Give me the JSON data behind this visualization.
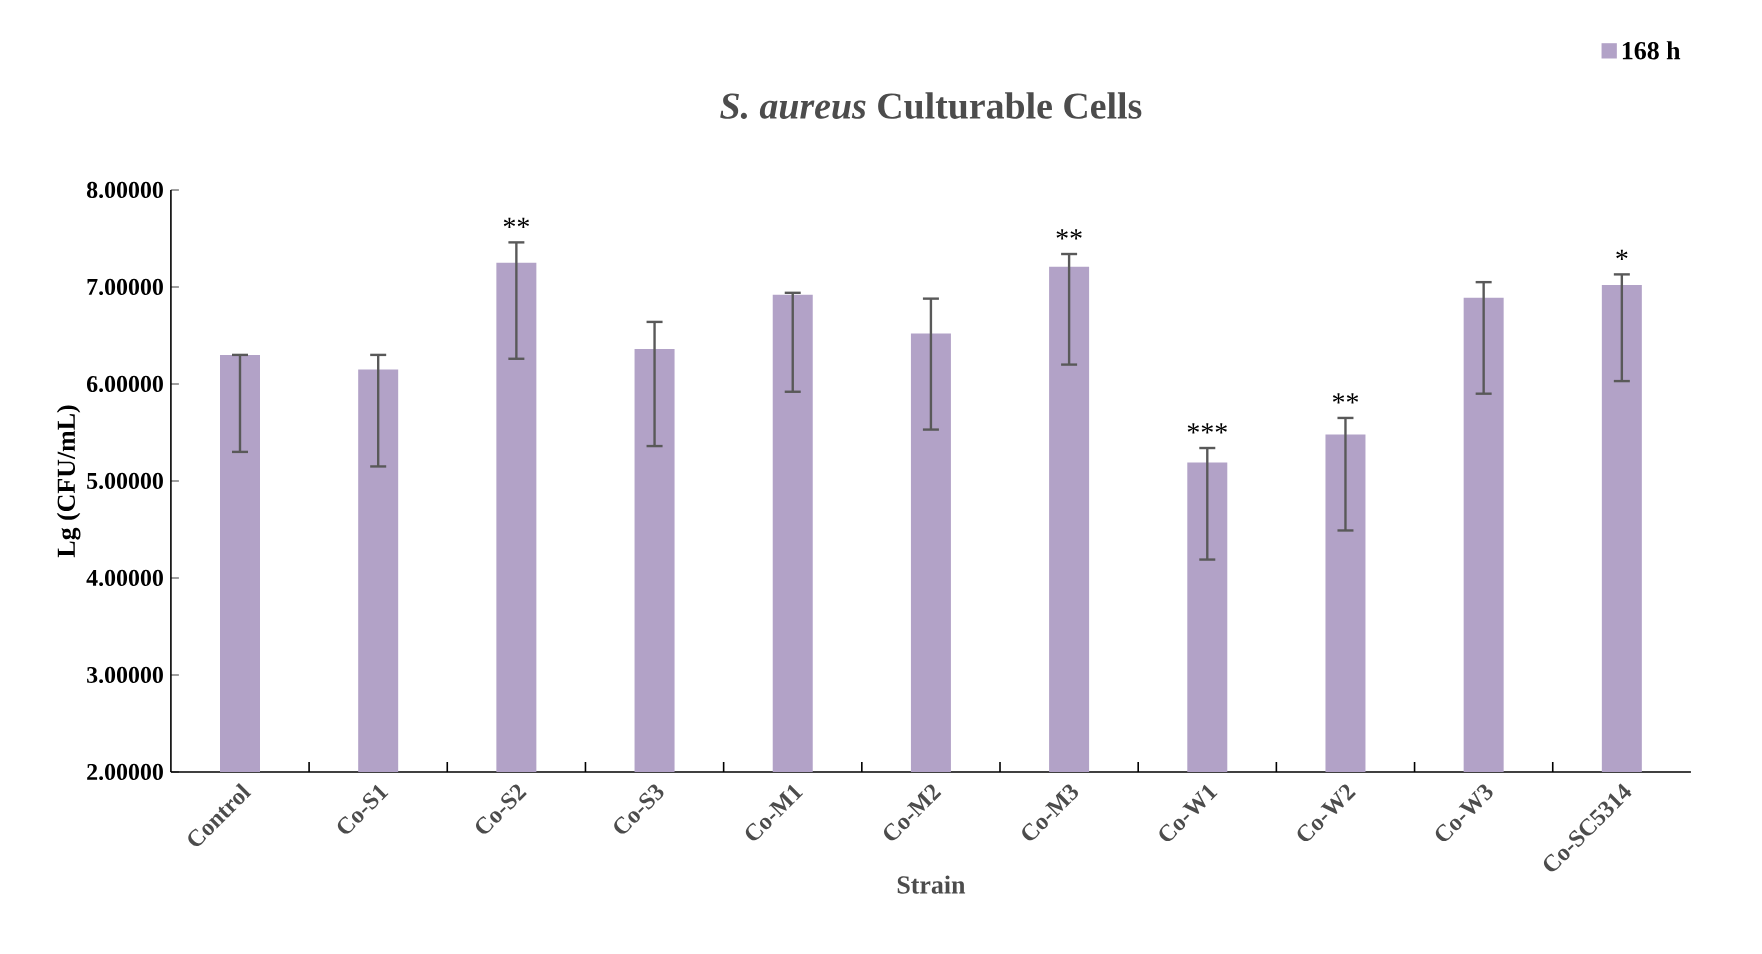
{
  "chart_data": {
    "type": "bar",
    "title": "*S. aureus* Culturable Cells",
    "xlabel": "Strain",
    "ylabel": "Lg (CFU/mL)",
    "categories": [
      "Control",
      "Co-S1",
      "Co-S2",
      "Co-S3",
      "Co-M1",
      "Co-M2",
      "Co-M3",
      "Co-W1",
      "Co-W2",
      "Co-W3",
      "Co-SC5314"
    ],
    "series": [
      {
        "name": "168 h",
        "color": "#b2a2c7",
        "values": [
          6.3,
          6.15,
          7.25,
          6.36,
          6.92,
          6.52,
          7.21,
          5.19,
          5.48,
          6.89,
          7.02
        ],
        "errors": [
          [
            5.3,
            6.3
          ],
          [
            5.15,
            6.3
          ],
          [
            6.26,
            7.46
          ],
          [
            5.36,
            6.64
          ],
          [
            5.92,
            6.94
          ],
          [
            5.53,
            6.88
          ],
          [
            6.2,
            7.34
          ],
          [
            4.19,
            5.34
          ],
          [
            4.49,
            5.65
          ],
          [
            5.9,
            7.05
          ],
          [
            6.03,
            7.13
          ]
        ]
      }
    ],
    "ylim": [
      2,
      8
    ],
    "yticks": [
      {
        "value": 2,
        "label": "2.00000"
      },
      {
        "value": 3,
        "label": "3.00000"
      },
      {
        "value": 4,
        "label": "4.00000"
      },
      {
        "value": 5,
        "label": "5.00000"
      },
      {
        "value": 6,
        "label": "6.00000"
      },
      {
        "value": 7,
        "label": "7.00000"
      },
      {
        "value": 8,
        "label": "8.00000"
      }
    ],
    "legend": "top right",
    "annotations": [
      {
        "text": "**",
        "x": "Co-S2",
        "y": 7.46
      },
      {
        "text": "**",
        "x": "Co-M3",
        "y": 7.34
      },
      {
        "text": "***",
        "x": "Co-W1",
        "y": 5.34
      },
      {
        "text": "**",
        "x": "Co-W2",
        "y": 5.65
      },
      {
        "text": "*",
        "x": "Co-SC5314",
        "y": 7.13
      }
    ]
  }
}
